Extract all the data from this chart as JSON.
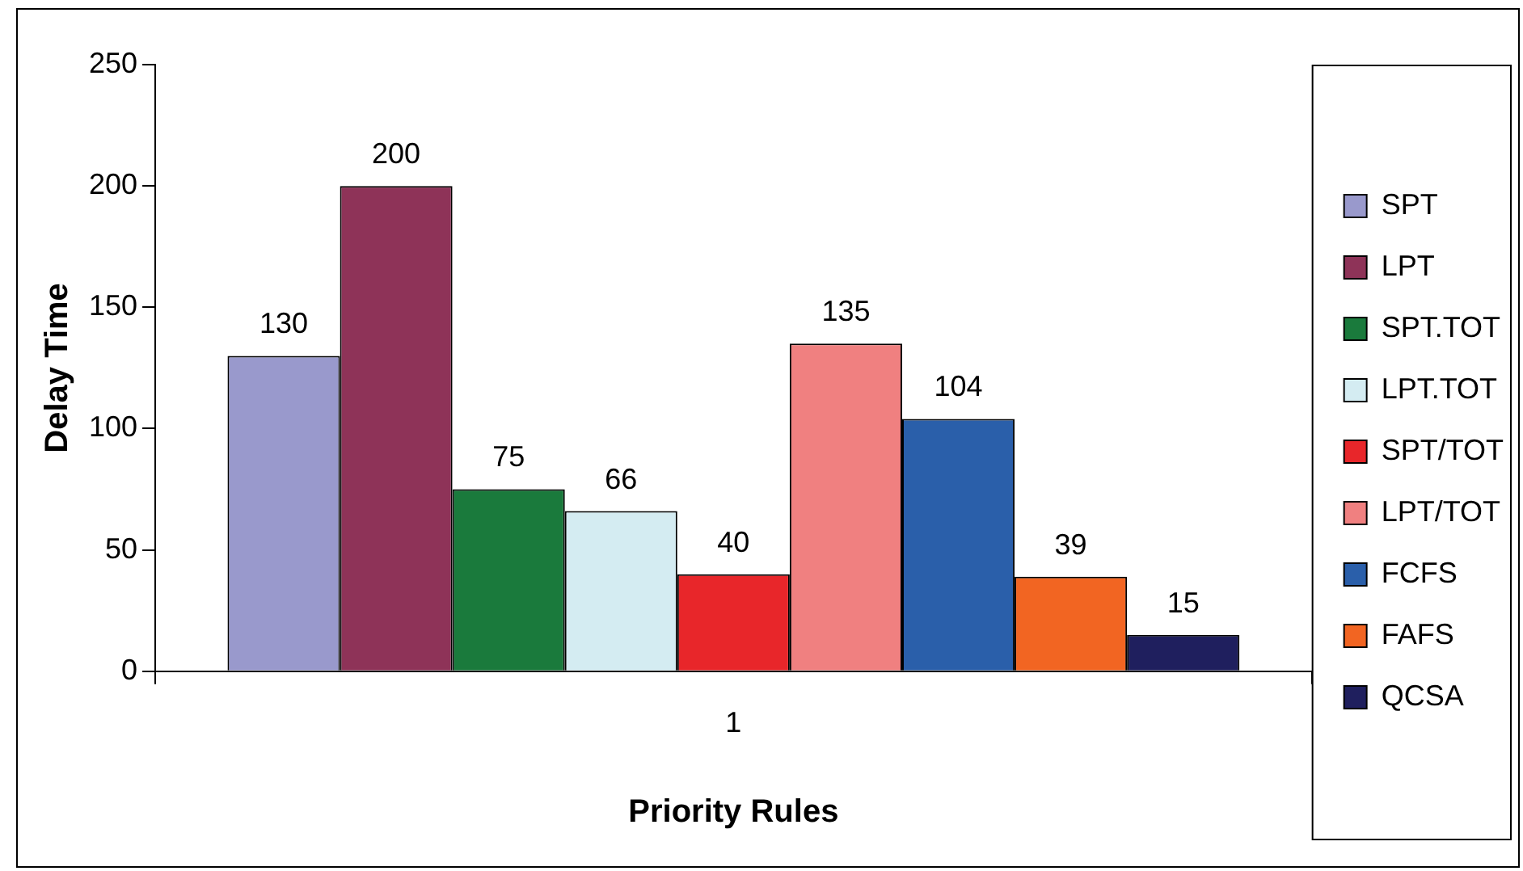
{
  "chart_data": {
    "type": "bar",
    "xlabel": "Priority Rules",
    "ylabel": "Delay Time",
    "categories": [
      "1"
    ],
    "series": [
      {
        "name": "SPT",
        "color": "#9999cc",
        "values": [
          130
        ]
      },
      {
        "name": "LPT",
        "color": "#8e3358",
        "values": [
          200
        ]
      },
      {
        "name": "SPT.TOT",
        "color": "#1a7a3c",
        "values": [
          75
        ]
      },
      {
        "name": "LPT.TOT",
        "color": "#d4ecf2",
        "values": [
          66
        ]
      },
      {
        "name": "SPT/TOT",
        "color": "#e8262a",
        "values": [
          40
        ]
      },
      {
        "name": "LPT/TOT",
        "color": "#f08080",
        "values": [
          135
        ]
      },
      {
        "name": "FCFS",
        "color": "#2a5faa",
        "values": [
          104
        ]
      },
      {
        "name": "FAFS",
        "color": "#f26522",
        "values": [
          39
        ]
      },
      {
        "name": "QCSA",
        "color": "#1f1f5e",
        "values": [
          15
        ]
      }
    ],
    "ylim": [
      0,
      250
    ],
    "yticks": [
      0,
      50,
      100,
      150,
      200,
      250
    ],
    "grid": false,
    "legend": "right",
    "data_labels": true
  }
}
